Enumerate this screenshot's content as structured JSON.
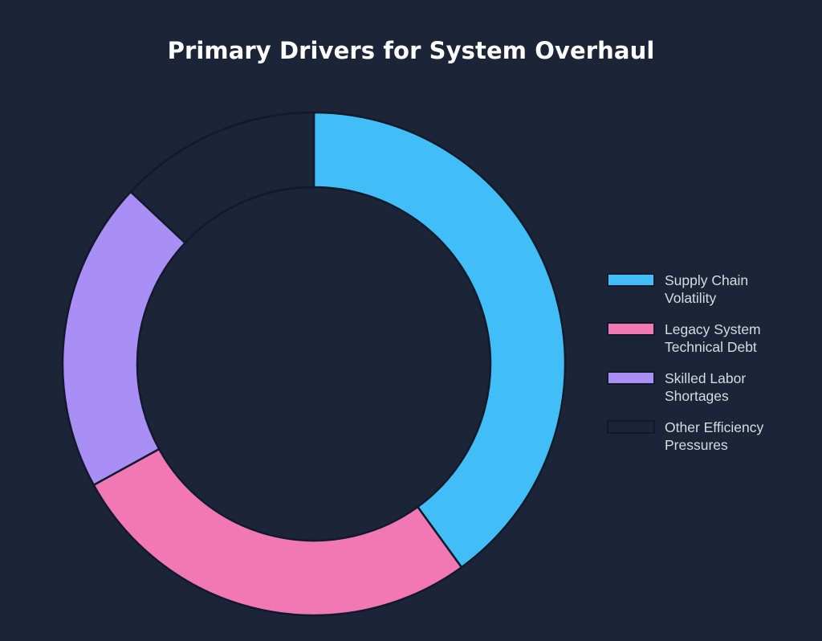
{
  "chart_data": {
    "type": "pie",
    "variant": "donut",
    "title": "Primary Drivers for System Overhaul",
    "categories": [
      "Supply Chain Volatility",
      "Legacy System Technical Debt",
      "Skilled Labor Shortages",
      "Other Efficiency Pressures"
    ],
    "values": [
      40,
      27,
      20,
      13
    ],
    "colors": [
      "#41bdf7",
      "#f278b5",
      "#a98ef5",
      "#1b2537"
    ],
    "legend_position": "right",
    "legend": [
      {
        "label": "Supply Chain\nVolatility",
        "color": "#41bdf7"
      },
      {
        "label": "Legacy System\nTechnical Debt",
        "color": "#f278b5"
      },
      {
        "label": "Skilled Labor\nShortages",
        "color": "#a98ef5"
      },
      {
        "label": "Other Efficiency\nPressures",
        "color": "#1b2537"
      }
    ]
  }
}
